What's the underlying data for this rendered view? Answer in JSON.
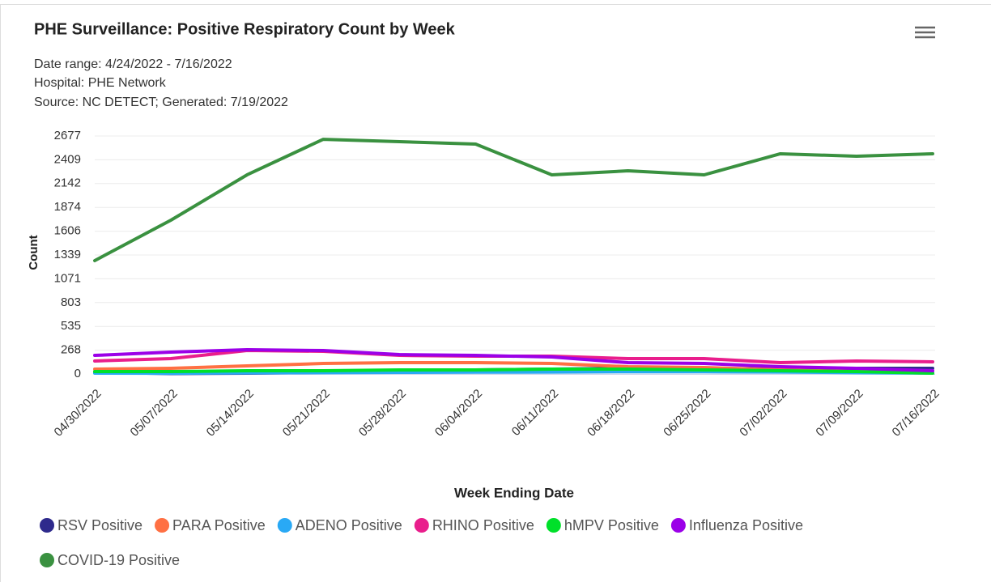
{
  "chart_data": {
    "type": "line",
    "title": "PHE Surveillance: Positive Respiratory Count by Week",
    "subtitle": [
      "Date range: 4/24/2022 - 7/16/2022",
      "Hospital: PHE Network",
      "Source: NC DETECT; Generated: 7/19/2022"
    ],
    "xlabel": "Week Ending Date",
    "ylabel": "Count",
    "categories": [
      "04/30/2022",
      "05/07/2022",
      "05/14/2022",
      "05/21/2022",
      "05/28/2022",
      "06/04/2022",
      "06/11/2022",
      "06/18/2022",
      "06/25/2022",
      "07/02/2022",
      "07/09/2022",
      "07/16/2022"
    ],
    "ylim": [
      0,
      2677
    ],
    "yticks": [
      0,
      268,
      535,
      803,
      1071,
      1339,
      1606,
      1874,
      2142,
      2409,
      2677
    ],
    "grid": true,
    "series": [
      {
        "name": "RSV Positive",
        "color": "#2e2a8c",
        "values": [
          18,
          5,
          9,
          18,
          36,
          46,
          55,
          64,
          64,
          55,
          64,
          64
        ]
      },
      {
        "name": "PARA Positive",
        "color": "#ff7043",
        "values": [
          55,
          64,
          91,
          118,
          127,
          127,
          118,
          82,
          73,
          46,
          27,
          9
        ]
      },
      {
        "name": "ADENO Positive",
        "color": "#29a9f5",
        "values": [
          9,
          8,
          12,
          15,
          18,
          20,
          22,
          25,
          25,
          22,
          15,
          10
        ]
      },
      {
        "name": "RHINO Positive",
        "color": "#e91e8c",
        "values": [
          146,
          173,
          264,
          255,
          209,
          200,
          200,
          173,
          173,
          127,
          146,
          137
        ]
      },
      {
        "name": "hMPV Positive",
        "color": "#00e02a",
        "values": [
          27,
          27,
          36,
          36,
          46,
          46,
          55,
          55,
          46,
          36,
          27,
          9
        ]
      },
      {
        "name": "Influenza Positive",
        "color": "#9b00e8",
        "values": [
          209,
          246,
          273,
          264,
          218,
          209,
          191,
          127,
          118,
          82,
          64,
          36
        ]
      },
      {
        "name": "COVID-19 Positive",
        "color": "#3a9140",
        "values": [
          1275,
          1730,
          2240,
          2640,
          2613,
          2586,
          2240,
          2285,
          2240,
          2477,
          2449,
          2477
        ]
      }
    ]
  }
}
